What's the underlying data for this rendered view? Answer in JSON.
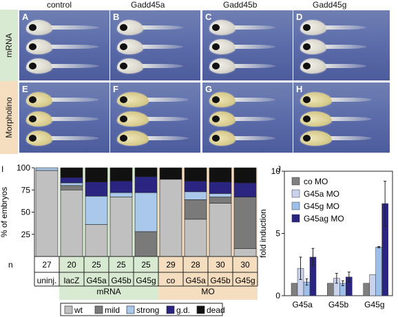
{
  "figure": {
    "column_headers": [
      "control",
      "Gadd45a",
      "Gadd45b",
      "Gadd45g"
    ],
    "row_labels": [
      "mRNA",
      "Morpholino"
    ],
    "panel_letters": [
      "A",
      "B",
      "C",
      "D",
      "E",
      "F",
      "G",
      "H"
    ],
    "colors": {
      "mrna_band": "#d9ead3",
      "mo_band": "#f5ddc0",
      "image_bg": "#5d6dab"
    }
  },
  "chart_data": [
    {
      "type": "bar",
      "panel": "I",
      "stacked": true,
      "ylabel": "% of embryos",
      "yticks": [
        25,
        50,
        75,
        100
      ],
      "ylim": [
        0,
        100
      ],
      "n_label": "n",
      "categories": [
        "uninj.",
        "lacZ",
        "G45a",
        "G45b",
        "G45g",
        "co",
        "G45a",
        "G45b",
        "G45g"
      ],
      "n": [
        "27",
        "20",
        "25",
        "25",
        "25",
        "29",
        "28",
        "30",
        "30"
      ],
      "groups": [
        {
          "label": "mRNA",
          "categories": [
            1,
            4
          ],
          "color": "#d9ead3"
        },
        {
          "label": "MO",
          "categories": [
            5,
            8
          ],
          "color": "#f5ddc0"
        }
      ],
      "series": [
        {
          "name": "wt",
          "color": "#c0c0c0",
          "values": [
            97,
            75,
            36,
            67,
            0,
            87,
            42,
            60,
            9
          ]
        },
        {
          "name": "mild",
          "color": "#7a7a7a",
          "values": [
            0,
            5,
            0,
            0,
            28,
            0,
            22,
            7,
            58
          ]
        },
        {
          "name": "strong",
          "color": "#a9c8ea",
          "values": [
            3,
            3,
            32,
            5,
            44,
            0,
            9,
            4,
            0
          ]
        },
        {
          "name": "g.d.",
          "color": "#2b2582",
          "values": [
            0,
            6,
            16,
            13,
            18,
            0,
            12,
            13,
            16
          ]
        },
        {
          "name": "dead",
          "color": "#111111",
          "values": [
            0,
            11,
            16,
            15,
            10,
            13,
            15,
            16,
            17
          ]
        }
      ]
    },
    {
      "type": "bar",
      "panel": "J",
      "ylabel": "fold induction",
      "yticks": [
        0,
        5,
        10
      ],
      "ylim": [
        0,
        10
      ],
      "categories": [
        "G45a",
        "G45b",
        "G45g"
      ],
      "series": [
        {
          "name": "co MO",
          "color": "#7f7f7f",
          "values": [
            1.0,
            1.0,
            1.0
          ],
          "err": [
            0,
            0,
            0
          ]
        },
        {
          "name": "G45a MO",
          "color": "#c9d3ee",
          "values": [
            2.2,
            1.4,
            1.7
          ],
          "err": [
            0.9,
            0.4,
            0
          ]
        },
        {
          "name": "G45g MO",
          "color": "#9cc0ea",
          "values": [
            1.1,
            1.0,
            3.9
          ],
          "err": [
            0.25,
            0.2,
            0.05
          ]
        },
        {
          "name": "G45ag MO",
          "color": "#2b2582",
          "values": [
            3.1,
            1.5,
            7.4
          ],
          "err": [
            0.7,
            0.4,
            1.8
          ]
        }
      ]
    }
  ]
}
